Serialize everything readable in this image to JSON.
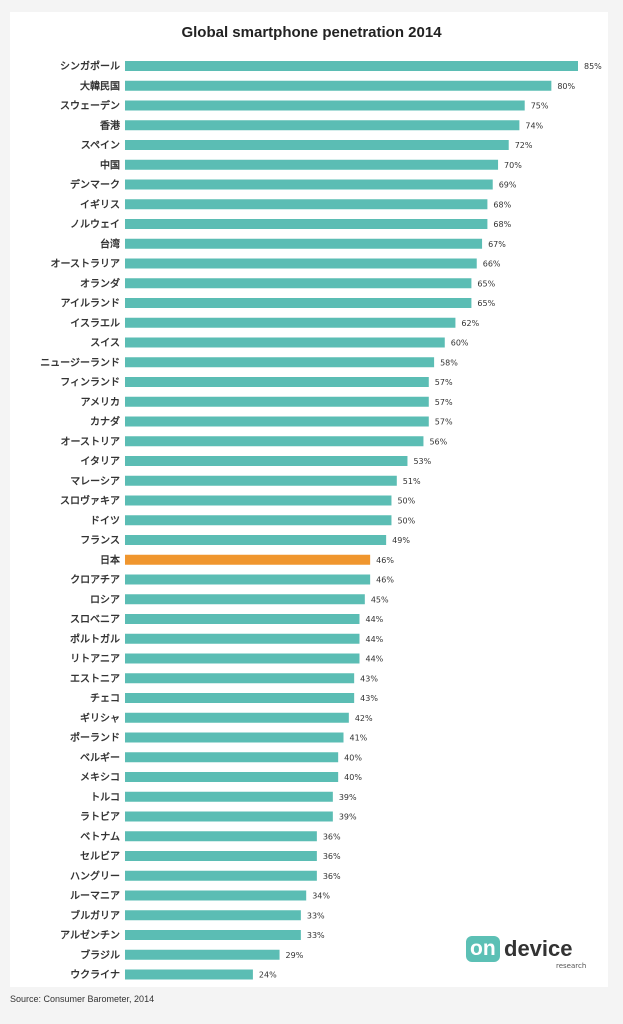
{
  "chart_data": {
    "type": "bar",
    "orientation": "horizontal",
    "title": "Global smartphone penetration 2014",
    "categories": [
      "シンガポール",
      "大韓民国",
      "スウェーデン",
      "香港",
      "スペイン",
      "中国",
      "デンマーク",
      "イギリス",
      "ノルウェイ",
      "台湾",
      "オーストラリア",
      "オランダ",
      "アイルランド",
      "イスラエル",
      "スイス",
      "ニュージーランド",
      "フィンランド",
      "アメリカ",
      "カナダ",
      "オーストリア",
      "イタリア",
      "マレーシア",
      "スロヴァキア",
      "ドイツ",
      "フランス",
      "日本",
      "クロアチア",
      "ロシア",
      "スロベニア",
      "ポルトガル",
      "リトアニア",
      "エストニア",
      "チェコ",
      "ギリシャ",
      "ポーランド",
      "ベルギー",
      "メキシコ",
      "トルコ",
      "ラトビア",
      "ベトナム",
      "セルビア",
      "ハングリー",
      "ルーマニア",
      "ブルガリア",
      "アルゼンチン",
      "ブラジル",
      "ウクライナ"
    ],
    "values": [
      85,
      80,
      75,
      74,
      72,
      70,
      69,
      68,
      68,
      67,
      66,
      65,
      65,
      62,
      60,
      58,
      57,
      57,
      57,
      56,
      53,
      51,
      50,
      50,
      49,
      46,
      46,
      45,
      44,
      44,
      44,
      43,
      43,
      42,
      41,
      40,
      40,
      39,
      39,
      36,
      36,
      36,
      34,
      33,
      33,
      29,
      24
    ],
    "value_labels": [
      "85%",
      "80%",
      "75%",
      "74%",
      "72%",
      "70%",
      "69%",
      "68%",
      "68%",
      "67%",
      "66%",
      "65%",
      "65%",
      "62%",
      "60%",
      "58%",
      "57%",
      "57%",
      "57%",
      "56%",
      "53%",
      "51%",
      "50%",
      "50%",
      "49%",
      "46%",
      "46%",
      "45%",
      "44%",
      "44%",
      "44%",
      "43%",
      "43%",
      "42%",
      "41%",
      "40%",
      "40%",
      "39%",
      "39%",
      "36%",
      "36%",
      "36%",
      "34%",
      "33%",
      "33%",
      "29%",
      "24%"
    ],
    "highlight_category": "日本",
    "bar_color": "#5bbdb4",
    "highlight_color": "#f0962e",
    "xlim": [
      0,
      85
    ],
    "grid": false,
    "legend": "none"
  },
  "source": "Source: Consumer Barometer, 2014",
  "logo": {
    "mark": "on",
    "word": "device",
    "sub": "research"
  }
}
